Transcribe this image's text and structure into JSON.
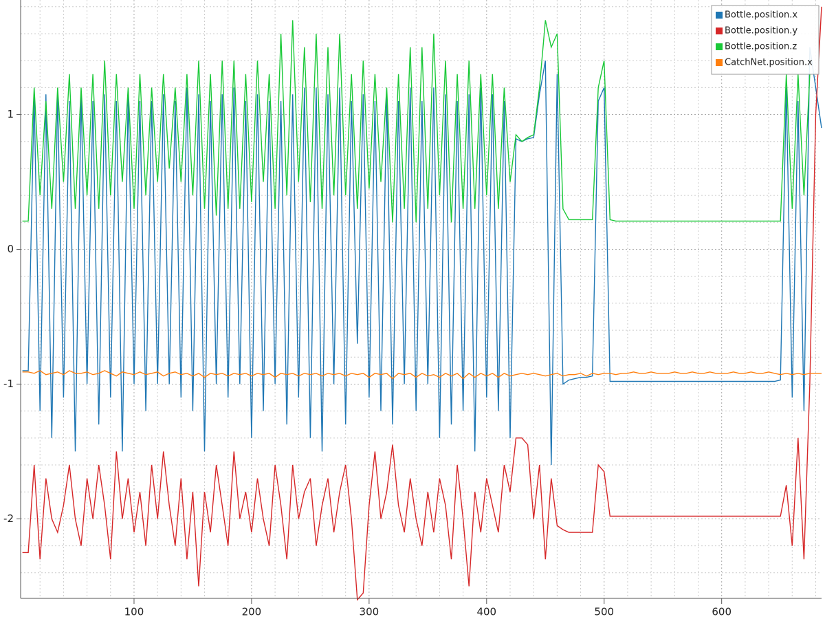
{
  "chart_data": {
    "type": "line",
    "x": [
      5,
      10,
      15,
      20,
      25,
      30,
      35,
      40,
      45,
      50,
      55,
      60,
      65,
      70,
      75,
      80,
      85,
      90,
      95,
      100,
      105,
      110,
      115,
      120,
      125,
      130,
      135,
      140,
      145,
      150,
      155,
      160,
      165,
      170,
      175,
      180,
      185,
      190,
      195,
      200,
      205,
      210,
      215,
      220,
      225,
      230,
      235,
      240,
      245,
      250,
      255,
      260,
      265,
      270,
      275,
      280,
      285,
      290,
      295,
      300,
      305,
      310,
      315,
      320,
      325,
      330,
      335,
      340,
      345,
      350,
      355,
      360,
      365,
      370,
      375,
      380,
      385,
      390,
      395,
      400,
      405,
      410,
      415,
      420,
      425,
      430,
      435,
      440,
      445,
      450,
      455,
      460,
      465,
      470,
      475,
      480,
      485,
      490,
      495,
      500,
      505,
      510,
      515,
      520,
      525,
      530,
      535,
      540,
      545,
      550,
      555,
      560,
      565,
      570,
      575,
      580,
      585,
      590,
      595,
      600,
      605,
      610,
      615,
      620,
      625,
      630,
      635,
      640,
      645,
      650,
      655,
      660,
      665,
      670,
      675,
      680,
      685
    ],
    "series": [
      {
        "name": "Bottle.position.x",
        "color": "#1f77b4",
        "values": [
          -0.9,
          -0.9,
          1.15,
          -1.2,
          1.15,
          -1.4,
          1.15,
          -1.1,
          1.1,
          -1.5,
          1.15,
          -1.0,
          1.1,
          -1.3,
          1.15,
          -1.1,
          1.1,
          -1.5,
          1.15,
          -1.0,
          1.1,
          -1.2,
          1.1,
          -1.0,
          1.15,
          -1.0,
          1.1,
          -1.1,
          1.2,
          -1.2,
          1.15,
          -1.5,
          1.1,
          -1.0,
          1.15,
          -1.1,
          1.2,
          -1.0,
          1.1,
          -1.4,
          1.15,
          -1.2,
          1.1,
          -1.0,
          1.1,
          -1.3,
          1.15,
          -1.1,
          1.2,
          -1.4,
          1.2,
          -1.5,
          1.15,
          -1.0,
          1.2,
          -1.3,
          1.1,
          -0.7,
          1.15,
          -1.1,
          1.1,
          -1.2,
          1.15,
          -1.3,
          1.1,
          -1.0,
          1.2,
          -1.2,
          1.1,
          -1.0,
          1.2,
          -1.4,
          1.15,
          -1.3,
          1.1,
          -1.2,
          1.15,
          -1.5,
          1.2,
          -1.1,
          1.15,
          -1.2,
          1.1,
          -1.4,
          0.82,
          0.8,
          0.82,
          0.83,
          1.15,
          1.4,
          -1.6,
          1.3,
          -1.0,
          -0.97,
          -0.96,
          -0.95,
          -0.95,
          -0.94,
          1.1,
          1.2,
          -0.98,
          -0.98,
          -0.98,
          -0.98,
          -0.98,
          -0.98,
          -0.98,
          -0.98,
          -0.98,
          -0.98,
          -0.98,
          -0.98,
          -0.98,
          -0.98,
          -0.98,
          -0.98,
          -0.98,
          -0.98,
          -0.98,
          -0.98,
          -0.98,
          -0.98,
          -0.98,
          -0.98,
          -0.98,
          -0.98,
          -0.98,
          -0.98,
          -0.98,
          -0.97,
          1.2,
          -1.1,
          1.1,
          -1.2,
          1.5,
          1.2,
          0.9
        ]
      },
      {
        "name": "Bottle.position.y",
        "color": "#d62728",
        "values": [
          -2.25,
          -2.25,
          -1.6,
          -2.3,
          -1.7,
          -2.0,
          -2.1,
          -1.9,
          -1.6,
          -2.0,
          -2.2,
          -1.7,
          -2.0,
          -1.6,
          -1.9,
          -2.3,
          -1.5,
          -2.0,
          -1.7,
          -2.1,
          -1.8,
          -2.2,
          -1.6,
          -2.0,
          -1.5,
          -1.9,
          -2.2,
          -1.7,
          -2.3,
          -1.8,
          -2.5,
          -1.8,
          -2.1,
          -1.6,
          -1.9,
          -2.2,
          -1.5,
          -2.0,
          -1.8,
          -2.1,
          -1.7,
          -2.0,
          -2.2,
          -1.6,
          -1.9,
          -2.3,
          -1.6,
          -2.0,
          -1.8,
          -1.7,
          -2.2,
          -1.9,
          -1.7,
          -2.1,
          -1.8,
          -1.6,
          -2.0,
          -2.6,
          -2.55,
          -1.9,
          -1.5,
          -2.0,
          -1.8,
          -1.45,
          -1.9,
          -2.1,
          -1.7,
          -2.0,
          -2.2,
          -1.8,
          -2.1,
          -1.7,
          -1.9,
          -2.3,
          -1.6,
          -2.0,
          -2.5,
          -1.8,
          -2.1,
          -1.7,
          -1.9,
          -2.1,
          -1.6,
          -1.8,
          -1.4,
          -1.4,
          -1.45,
          -2.0,
          -1.6,
          -2.3,
          -1.7,
          -2.05,
          -2.08,
          -2.1,
          -2.1,
          -2.1,
          -2.1,
          -2.1,
          -1.6,
          -1.65,
          -1.98,
          -1.98,
          -1.98,
          -1.98,
          -1.98,
          -1.98,
          -1.98,
          -1.98,
          -1.98,
          -1.98,
          -1.98,
          -1.98,
          -1.98,
          -1.98,
          -1.98,
          -1.98,
          -1.98,
          -1.98,
          -1.98,
          -1.98,
          -1.98,
          -1.98,
          -1.98,
          -1.98,
          -1.98,
          -1.98,
          -1.98,
          -1.98,
          -1.98,
          -1.98,
          -1.75,
          -2.2,
          -1.4,
          -2.3,
          -1.0,
          1.0,
          1.8
        ]
      },
      {
        "name": "Bottle.position.z",
        "color": "#1ac938",
        "values": [
          0.21,
          0.21,
          1.2,
          0.4,
          1.1,
          0.3,
          1.2,
          0.5,
          1.3,
          0.3,
          1.2,
          0.4,
          1.3,
          0.3,
          1.4,
          0.4,
          1.3,
          0.5,
          1.2,
          0.3,
          1.3,
          0.4,
          1.2,
          0.5,
          1.3,
          0.6,
          1.2,
          0.5,
          1.3,
          0.4,
          1.4,
          0.3,
          1.3,
          0.25,
          1.4,
          0.3,
          1.4,
          0.3,
          1.3,
          0.35,
          1.4,
          0.5,
          1.3,
          0.3,
          1.6,
          0.4,
          1.7,
          0.5,
          1.5,
          0.35,
          1.6,
          0.3,
          1.5,
          0.4,
          1.6,
          0.4,
          1.3,
          0.3,
          1.4,
          0.45,
          1.3,
          0.5,
          1.2,
          0.2,
          1.3,
          0.3,
          1.5,
          0.2,
          1.5,
          0.3,
          1.6,
          0.4,
          1.4,
          0.2,
          1.3,
          0.3,
          1.4,
          0.3,
          1.3,
          0.4,
          1.3,
          0.3,
          1.2,
          0.5,
          0.85,
          0.8,
          0.83,
          0.85,
          1.2,
          1.7,
          1.5,
          1.6,
          0.3,
          0.22,
          0.22,
          0.22,
          0.22,
          0.22,
          1.2,
          1.4,
          0.22,
          0.21,
          0.21,
          0.21,
          0.21,
          0.21,
          0.21,
          0.21,
          0.21,
          0.21,
          0.21,
          0.21,
          0.21,
          0.21,
          0.21,
          0.21,
          0.21,
          0.21,
          0.21,
          0.21,
          0.21,
          0.21,
          0.21,
          0.21,
          0.21,
          0.21,
          0.21,
          0.21,
          0.21,
          0.21,
          1.3,
          0.3,
          1.3,
          0.4,
          1.3,
          null,
          null
        ]
      },
      {
        "name": "CatchNet.position.x",
        "color": "#ff7f0e",
        "values": [
          -0.91,
          -0.91,
          -0.92,
          -0.9,
          -0.93,
          -0.92,
          -0.91,
          -0.93,
          -0.9,
          -0.92,
          -0.92,
          -0.91,
          -0.93,
          -0.92,
          -0.9,
          -0.92,
          -0.94,
          -0.91,
          -0.92,
          -0.93,
          -0.91,
          -0.93,
          -0.92,
          -0.91,
          -0.94,
          -0.92,
          -0.91,
          -0.93,
          -0.92,
          -0.94,
          -0.92,
          -0.95,
          -0.92,
          -0.93,
          -0.92,
          -0.94,
          -0.92,
          -0.93,
          -0.92,
          -0.94,
          -0.92,
          -0.93,
          -0.92,
          -0.95,
          -0.92,
          -0.93,
          -0.92,
          -0.94,
          -0.92,
          -0.93,
          -0.92,
          -0.94,
          -0.92,
          -0.93,
          -0.92,
          -0.94,
          -0.92,
          -0.93,
          -0.92,
          -0.95,
          -0.92,
          -0.93,
          -0.92,
          -0.96,
          -0.92,
          -0.93,
          -0.92,
          -0.95,
          -0.92,
          -0.94,
          -0.93,
          -0.95,
          -0.92,
          -0.94,
          -0.92,
          -0.96,
          -0.92,
          -0.95,
          -0.92,
          -0.94,
          -0.92,
          -0.95,
          -0.92,
          -0.94,
          -0.93,
          -0.92,
          -0.93,
          -0.92,
          -0.93,
          -0.94,
          -0.93,
          -0.92,
          -0.94,
          -0.93,
          -0.93,
          -0.92,
          -0.94,
          -0.92,
          -0.93,
          -0.92,
          -0.92,
          -0.93,
          -0.92,
          -0.92,
          -0.91,
          -0.92,
          -0.92,
          -0.91,
          -0.92,
          -0.92,
          -0.92,
          -0.91,
          -0.92,
          -0.92,
          -0.91,
          -0.92,
          -0.92,
          -0.91,
          -0.92,
          -0.92,
          -0.92,
          -0.91,
          -0.92,
          -0.92,
          -0.91,
          -0.92,
          -0.92,
          -0.91,
          -0.92,
          -0.93,
          -0.92,
          -0.93,
          -0.92,
          -0.93,
          -0.92,
          -0.92,
          -0.92
        ]
      }
    ],
    "xlim": [
      3.5,
      685
    ],
    "ylim": [
      -2.59,
      1.85
    ],
    "xticks": [
      100,
      200,
      300,
      400,
      500,
      600
    ],
    "yticks": [
      -2,
      -1,
      0,
      1
    ],
    "x_minor_ticks": [
      20,
      40,
      60,
      80,
      120,
      140,
      160,
      180,
      220,
      240,
      260,
      280,
      320,
      340,
      360,
      380,
      420,
      440,
      460,
      480,
      520,
      540,
      560,
      580,
      620,
      640,
      660,
      680
    ],
    "y_minor_ticks": [
      -2.4,
      -2.2,
      -1.8,
      -1.6,
      -1.4,
      -1.2,
      -0.8,
      -0.6,
      -0.4,
      -0.2,
      0.2,
      0.4,
      0.6,
      0.8,
      1.2,
      1.4,
      1.6,
      1.8
    ],
    "grid": true,
    "legend": "top-right"
  }
}
